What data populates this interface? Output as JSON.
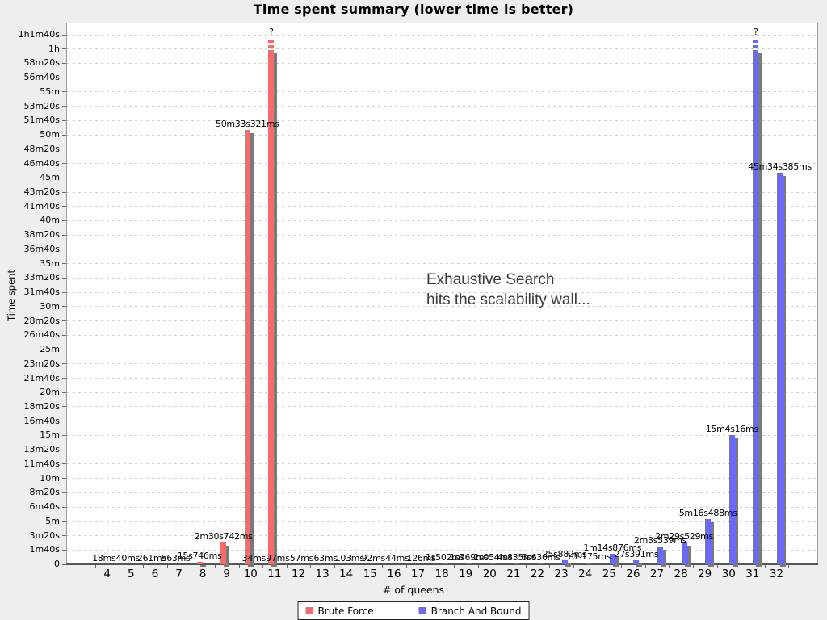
{
  "title": "Time spent summary (lower time is better)",
  "annotation": {
    "line1": "Exhaustive Search",
    "line2": "hits the scalability wall..."
  },
  "axes": {
    "x_title": "# of queens",
    "y_title": "Time spent",
    "y_ticks": [
      {
        "label": "1h1m40s",
        "s": 3700
      },
      {
        "label": "1h",
        "s": 3600
      },
      {
        "label": "58m20s",
        "s": 3500
      },
      {
        "label": "56m40s",
        "s": 3400
      },
      {
        "label": "55m",
        "s": 3300
      },
      {
        "label": "53m20s",
        "s": 3200
      },
      {
        "label": "51m40s",
        "s": 3100
      },
      {
        "label": "50m",
        "s": 3000
      },
      {
        "label": "48m20s",
        "s": 2900
      },
      {
        "label": "46m40s",
        "s": 2800
      },
      {
        "label": "45m",
        "s": 2700
      },
      {
        "label": "43m20s",
        "s": 2600
      },
      {
        "label": "41m40s",
        "s": 2500
      },
      {
        "label": "40m",
        "s": 2400
      },
      {
        "label": "38m20s",
        "s": 2300
      },
      {
        "label": "36m40s",
        "s": 2200
      },
      {
        "label": "35m",
        "s": 2100
      },
      {
        "label": "33m20s",
        "s": 2000
      },
      {
        "label": "31m40s",
        "s": 1900
      },
      {
        "label": "30m",
        "s": 1800
      },
      {
        "label": "28m20s",
        "s": 1700
      },
      {
        "label": "26m40s",
        "s": 1600
      },
      {
        "label": "25m",
        "s": 1500
      },
      {
        "label": "23m20s",
        "s": 1400
      },
      {
        "label": "21m40s",
        "s": 1300
      },
      {
        "label": "20m",
        "s": 1200
      },
      {
        "label": "18m20s",
        "s": 1100
      },
      {
        "label": "16m40s",
        "s": 1000
      },
      {
        "label": "15m",
        "s": 900
      },
      {
        "label": "13m20s",
        "s": 800
      },
      {
        "label": "11m40s",
        "s": 700
      },
      {
        "label": "10m",
        "s": 600
      },
      {
        "label": "8m20s",
        "s": 500
      },
      {
        "label": "6m40s",
        "s": 400
      },
      {
        "label": "5m",
        "s": 300
      },
      {
        "label": "3m20s",
        "s": 200
      },
      {
        "label": "1m40s",
        "s": 100
      },
      {
        "label": "0",
        "s": 0
      }
    ]
  },
  "legend": [
    {
      "label": "Brute Force",
      "color": "#fa6a6a"
    },
    {
      "label": "Branch And Bound",
      "color": "#6a6afa"
    }
  ],
  "colors": {
    "brute_force": "#fa6a6a",
    "branch_and_bound": "#6a6afa",
    "shadow": "#7a7a7a",
    "grid": "#cfcfcf",
    "plot_bg": "#ffffff",
    "page_bg": "#eeeeee"
  },
  "chart_data": {
    "type": "bar",
    "title": "Time spent summary (lower time is better)",
    "xlabel": "# of queens",
    "ylabel": "Time spent",
    "categories": [
      4,
      5,
      6,
      7,
      8,
      9,
      10,
      11,
      12,
      13,
      14,
      15,
      16,
      17,
      18,
      19,
      20,
      21,
      22,
      23,
      24,
      25,
      26,
      27,
      28,
      29,
      30,
      31,
      32
    ],
    "ylim_seconds": [
      0,
      3700
    ],
    "grid": "horizontal-dashed",
    "legend_position": "bottom",
    "series": [
      {
        "name": "Brute Force",
        "color": "#fa6a6a",
        "points": [
          {
            "x": 4,
            "label": "18ms",
            "seconds": 0.018
          },
          {
            "x": 5,
            "label": "40ms",
            "seconds": 0.04
          },
          {
            "x": 6,
            "label": "261ms",
            "seconds": 0.261
          },
          {
            "x": 7,
            "label": "563ms",
            "seconds": 0.563
          },
          {
            "x": 8,
            "label": "15s746ms",
            "seconds": 15.746
          },
          {
            "x": 9,
            "label": "2m30s742ms",
            "seconds": 150.742
          },
          {
            "x": 10,
            "label": "50m33s321ms",
            "seconds": 3033.321
          },
          {
            "x": 11,
            "label": "?",
            "seconds": null,
            "exceeds_axis": true
          }
        ]
      },
      {
        "name": "Branch And Bound",
        "color": "#6a6afa",
        "points": [
          {
            "x": 10,
            "label": "34ms",
            "seconds": 0.034
          },
          {
            "x": 11,
            "label": "97ms",
            "seconds": 0.097
          },
          {
            "x": 12,
            "label": "57ms",
            "seconds": 0.057
          },
          {
            "x": 13,
            "label": "63ms",
            "seconds": 0.063
          },
          {
            "x": 14,
            "label": "103ms",
            "seconds": 0.103
          },
          {
            "x": 15,
            "label": "92ms",
            "seconds": 0.092
          },
          {
            "x": 16,
            "label": "44ms",
            "seconds": 0.044
          },
          {
            "x": 17,
            "label": "126ms",
            "seconds": 0.126
          },
          {
            "x": 18,
            "label": "1s502ms",
            "seconds": 1.502
          },
          {
            "x": 19,
            "label": "1s769ms",
            "seconds": 1.769
          },
          {
            "x": 20,
            "label": "2s054ms",
            "seconds": 2.054
          },
          {
            "x": 21,
            "label": "4s835ms",
            "seconds": 4.835
          },
          {
            "x": 22,
            "label": "6s630ms",
            "seconds": 6.63
          },
          {
            "x": 23,
            "label": "25s882ms",
            "seconds": 25.882
          },
          {
            "x": 24,
            "label": "10s175ms",
            "seconds": 10.175
          },
          {
            "x": 25,
            "label": "1m14s876ms",
            "seconds": 74.876
          },
          {
            "x": 26,
            "label": "27s391ms",
            "seconds": 27.391
          },
          {
            "x": 27,
            "label": "2m3s539ms",
            "seconds": 123.539
          },
          {
            "x": 28,
            "label": "2m29s529ms",
            "seconds": 149.529
          },
          {
            "x": 29,
            "label": "5m16s488ms",
            "seconds": 316.488
          },
          {
            "x": 30,
            "label": "15m4s16ms",
            "seconds": 904.016
          },
          {
            "x": 31,
            "label": "?",
            "seconds": null,
            "exceeds_axis": true
          },
          {
            "x": 32,
            "label": "45m34s385ms",
            "seconds": 2734.385
          }
        ]
      }
    ]
  }
}
